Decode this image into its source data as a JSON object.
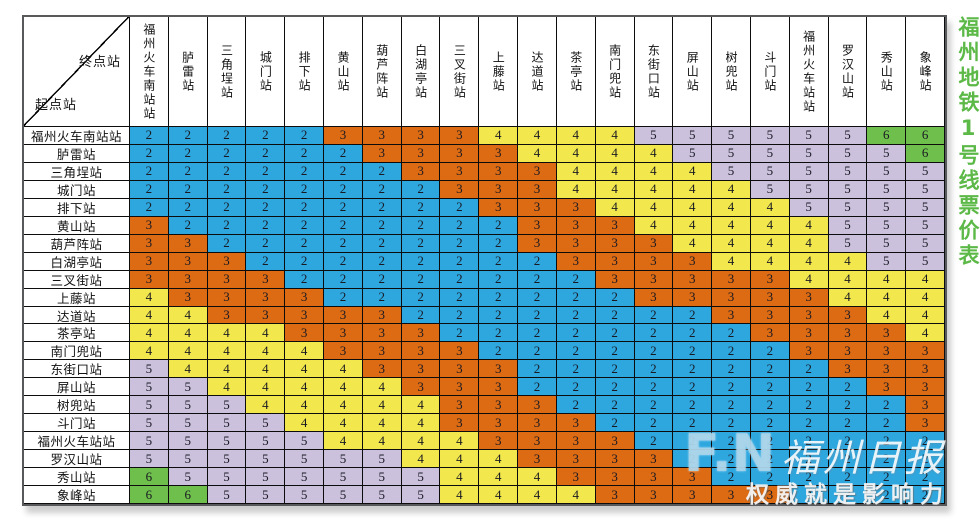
{
  "page_title": "福州地铁1号线票价表",
  "corner": {
    "destination_label": "终点站",
    "origin_label": "起点站"
  },
  "watermark": {
    "logo": "F.N",
    "logo_script": "福州日报",
    "slogan": "权威就是影响力"
  },
  "colors": {
    "title_green": "#5cb947",
    "fares": {
      "2": "#2ea7df",
      "3": "#dc6b14",
      "4": "#f2e84d",
      "5": "#cbc1dd",
      "6": "#6ebf4c"
    }
  },
  "chart_data": {
    "type": "table",
    "title": "福州地铁1号线票价表",
    "row_axis_label": "起点站",
    "col_axis_label": "终点站",
    "legend": "fare in yuan: 2=blue, 3=orange, 4=yellow, 5=lavender, 6=green",
    "stations": [
      "福州火车南站站",
      "胪雷站",
      "三角埕站",
      "城门站",
      "排下站",
      "黄山站",
      "葫芦阵站",
      "白湖亭站",
      "三叉街站",
      "上藤站",
      "达道站",
      "茶亭站",
      "南门兜站",
      "东街口站",
      "屏山站",
      "树兜站",
      "斗门站",
      "福州火车站站",
      "罗汉山站",
      "秀山站",
      "象峰站"
    ],
    "fare_matrix": [
      [
        2,
        2,
        2,
        2,
        2,
        3,
        3,
        3,
        3,
        4,
        4,
        4,
        4,
        5,
        5,
        5,
        5,
        5,
        5,
        6,
        6
      ],
      [
        2,
        2,
        2,
        2,
        2,
        2,
        3,
        3,
        3,
        3,
        4,
        4,
        4,
        4,
        5,
        5,
        5,
        5,
        5,
        5,
        6
      ],
      [
        2,
        2,
        2,
        2,
        2,
        2,
        2,
        3,
        3,
        3,
        3,
        4,
        4,
        4,
        4,
        5,
        5,
        5,
        5,
        5,
        5
      ],
      [
        2,
        2,
        2,
        2,
        2,
        2,
        2,
        2,
        3,
        3,
        3,
        4,
        4,
        4,
        4,
        4,
        5,
        5,
        5,
        5,
        5
      ],
      [
        2,
        2,
        2,
        2,
        2,
        2,
        2,
        2,
        2,
        3,
        3,
        3,
        4,
        4,
        4,
        4,
        4,
        5,
        5,
        5,
        5
      ],
      [
        3,
        2,
        2,
        2,
        2,
        2,
        2,
        2,
        2,
        2,
        3,
        3,
        3,
        4,
        4,
        4,
        4,
        4,
        5,
        5,
        5
      ],
      [
        3,
        3,
        2,
        2,
        2,
        2,
        2,
        2,
        2,
        2,
        3,
        3,
        3,
        3,
        4,
        4,
        4,
        4,
        5,
        5,
        5
      ],
      [
        3,
        3,
        3,
        2,
        2,
        2,
        2,
        2,
        2,
        2,
        2,
        3,
        3,
        3,
        3,
        4,
        4,
        4,
        4,
        5,
        5
      ],
      [
        3,
        3,
        3,
        3,
        2,
        2,
        2,
        2,
        2,
        2,
        2,
        2,
        3,
        3,
        3,
        3,
        3,
        4,
        4,
        4,
        4
      ],
      [
        4,
        3,
        3,
        3,
        3,
        2,
        2,
        2,
        2,
        2,
        2,
        2,
        2,
        3,
        3,
        3,
        3,
        3,
        4,
        4,
        4
      ],
      [
        4,
        4,
        3,
        3,
        3,
        3,
        3,
        2,
        2,
        2,
        2,
        2,
        2,
        2,
        2,
        3,
        3,
        3,
        3,
        4,
        4
      ],
      [
        4,
        4,
        4,
        4,
        3,
        3,
        3,
        3,
        2,
        2,
        2,
        2,
        2,
        2,
        2,
        2,
        3,
        3,
        3,
        3,
        4
      ],
      [
        4,
        4,
        4,
        4,
        4,
        3,
        3,
        3,
        3,
        2,
        2,
        2,
        2,
        2,
        2,
        2,
        2,
        3,
        3,
        3,
        3
      ],
      [
        5,
        4,
        4,
        4,
        4,
        4,
        3,
        3,
        3,
        3,
        2,
        2,
        2,
        2,
        2,
        2,
        2,
        2,
        3,
        3,
        3
      ],
      [
        5,
        5,
        4,
        4,
        4,
        4,
        4,
        3,
        3,
        3,
        2,
        2,
        2,
        2,
        2,
        2,
        2,
        2,
        2,
        3,
        3
      ],
      [
        5,
        5,
        5,
        4,
        4,
        4,
        4,
        4,
        3,
        3,
        3,
        2,
        2,
        2,
        2,
        2,
        2,
        2,
        2,
        2,
        3
      ],
      [
        5,
        5,
        5,
        5,
        4,
        4,
        4,
        4,
        3,
        3,
        3,
        3,
        2,
        2,
        2,
        2,
        2,
        2,
        2,
        2,
        3
      ],
      [
        5,
        5,
        5,
        5,
        5,
        4,
        4,
        4,
        4,
        3,
        3,
        3,
        3,
        2,
        2,
        2,
        2,
        2,
        2,
        2,
        2
      ],
      [
        5,
        5,
        5,
        5,
        5,
        5,
        5,
        4,
        4,
        4,
        3,
        3,
        3,
        3,
        2,
        2,
        2,
        2,
        2,
        2,
        2
      ],
      [
        6,
        5,
        5,
        5,
        5,
        5,
        5,
        5,
        4,
        4,
        4,
        3,
        3,
        3,
        3,
        2,
        2,
        2,
        2,
        2,
        2
      ],
      [
        6,
        6,
        5,
        5,
        5,
        5,
        5,
        5,
        4,
        4,
        4,
        4,
        3,
        3,
        3,
        3,
        3,
        2,
        2,
        2,
        2
      ]
    ]
  }
}
